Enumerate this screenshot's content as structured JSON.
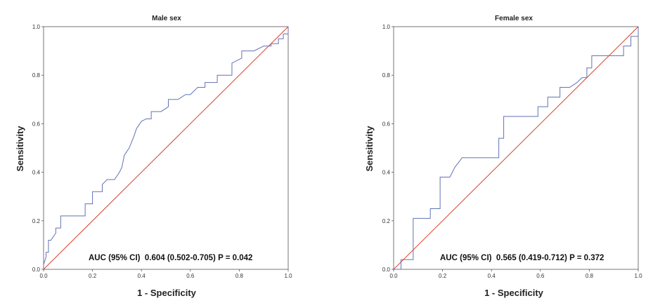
{
  "chart_data": [
    {
      "type": "line",
      "title": "Male sex",
      "xlabel": "1 - Specificity",
      "ylabel": "Sensitivity",
      "xlim": [
        0,
        1
      ],
      "ylim": [
        0,
        1
      ],
      "xticks": [
        "0.0",
        "0.2",
        "0.4",
        "0.6",
        "0.8",
        "1.0"
      ],
      "yticks": [
        "0.0",
        "0.2",
        "0.4",
        "0.6",
        "0.8",
        "1.0"
      ],
      "grid": false,
      "annotation": "AUC (95% CI)  0.604 (0.502-0.705) P = 0.042",
      "colors": {
        "roc": "#6272b5",
        "reference": "#d9402b"
      },
      "reference_line": {
        "x": [
          0,
          1
        ],
        "y": [
          0,
          1
        ]
      },
      "series": [
        {
          "x": [
            0,
            0,
            0.01,
            0.01,
            0.02,
            0.02,
            0.03,
            0.03,
            0.05,
            0.05,
            0.07,
            0.07,
            0.17,
            0.17,
            0.2,
            0.2,
            0.24,
            0.24,
            0.26,
            0.29,
            0.31,
            0.32,
            0.33,
            0.35,
            0.37,
            0.38,
            0.4,
            0.42,
            0.44,
            0.44,
            0.48,
            0.48,
            0.51,
            0.51,
            0.55,
            0.55,
            0.58,
            0.58,
            0.6,
            0.63,
            0.66,
            0.66,
            0.71,
            0.71,
            0.77,
            0.77,
            0.81,
            0.81,
            0.86,
            0.86,
            0.9,
            0.9,
            0.93,
            0.93,
            0.96,
            0.96,
            0.98,
            0.98,
            1.0,
            1.0
          ],
          "y": [
            0,
            0.02,
            0.05,
            0.07,
            0.07,
            0.12,
            0.12,
            0.12,
            0.15,
            0.17,
            0.17,
            0.22,
            0.22,
            0.27,
            0.27,
            0.32,
            0.32,
            0.35,
            0.37,
            0.37,
            0.4,
            0.42,
            0.47,
            0.5,
            0.55,
            0.58,
            0.61,
            0.62,
            0.62,
            0.65,
            0.65,
            0.65,
            0.67,
            0.7,
            0.7,
            0.7,
            0.72,
            0.72,
            0.72,
            0.75,
            0.75,
            0.77,
            0.77,
            0.8,
            0.8,
            0.85,
            0.87,
            0.9,
            0.9,
            0.9,
            0.92,
            0.92,
            0.92,
            0.93,
            0.93,
            0.95,
            0.95,
            0.97,
            0.97,
            1.0
          ]
        }
      ]
    },
    {
      "type": "line",
      "title": "Female sex",
      "xlabel": "1 - Specificity",
      "ylabel": "Sensitivity",
      "xlim": [
        0,
        1
      ],
      "ylim": [
        0,
        1
      ],
      "xticks": [
        "0.0",
        "0.2",
        "0.4",
        "0.6",
        "0.8",
        "1.0"
      ],
      "yticks": [
        "0.0",
        "0.2",
        "0.4",
        "0.6",
        "0.8",
        "1.0"
      ],
      "grid": false,
      "annotation": "AUC (95% CI)  0.565 (0.419-0.712) P = 0.372",
      "colors": {
        "roc": "#6272b5",
        "reference": "#d9402b"
      },
      "reference_line": {
        "x": [
          0,
          1
        ],
        "y": [
          0,
          1
        ]
      },
      "series": [
        {
          "x": [
            0,
            0.03,
            0.03,
            0.08,
            0.08,
            0.15,
            0.15,
            0.19,
            0.19,
            0.23,
            0.25,
            0.28,
            0.43,
            0.43,
            0.45,
            0.45,
            0.55,
            0.55,
            0.59,
            0.59,
            0.63,
            0.63,
            0.68,
            0.68,
            0.72,
            0.75,
            0.77,
            0.79,
            0.79,
            0.81,
            0.81,
            0.88,
            0.88,
            0.94,
            0.94,
            0.97,
            0.97,
            1.0,
            1.0
          ],
          "y": [
            0,
            0,
            0.04,
            0.04,
            0.21,
            0.21,
            0.25,
            0.25,
            0.38,
            0.38,
            0.42,
            0.46,
            0.46,
            0.54,
            0.54,
            0.63,
            0.63,
            0.63,
            0.63,
            0.67,
            0.67,
            0.71,
            0.71,
            0.75,
            0.75,
            0.77,
            0.79,
            0.79,
            0.83,
            0.83,
            0.88,
            0.88,
            0.88,
            0.88,
            0.92,
            0.92,
            0.96,
            0.96,
            1.0
          ]
        }
      ]
    }
  ]
}
